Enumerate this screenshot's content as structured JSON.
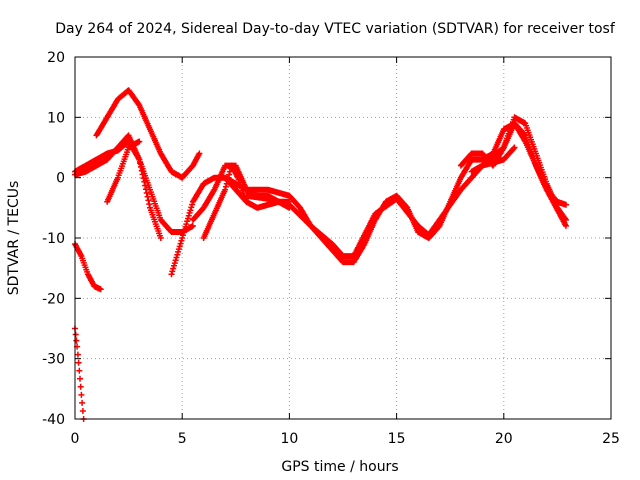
{
  "chart_data": {
    "type": "scatter",
    "title": "Day 264 of 2024, Sidereal Day-to-day VTEC variation (SDTVAR) for receiver tosf",
    "xlabel": "GPS time / hours",
    "ylabel": "SDTVAR / TECUs",
    "xlim": [
      0,
      25
    ],
    "ylim": [
      -40,
      20
    ],
    "xticks": [
      0,
      5,
      10,
      15,
      20,
      25
    ],
    "yticks": [
      -40,
      -30,
      -20,
      -10,
      0,
      10,
      20
    ],
    "grid": true,
    "marker": "+",
    "color": "#ff0000",
    "series": [
      {
        "name": "s1",
        "x": [
          0.0,
          0.1,
          0.2,
          0.3,
          0.4
        ],
        "y": [
          -25,
          -28,
          -32,
          -36,
          -40
        ]
      },
      {
        "name": "s2",
        "x": [
          0.0,
          0.3,
          0.6,
          0.9,
          1.2
        ],
        "y": [
          -11,
          -13,
          -16,
          -18,
          -18.5
        ]
      },
      {
        "name": "s3",
        "x": [
          0.0,
          0.5,
          1.0,
          1.5,
          2.0,
          2.5,
          3.0,
          3.5,
          4.0
        ],
        "y": [
          0.5,
          1,
          2,
          3,
          5,
          7,
          3,
          -5,
          -10
        ]
      },
      {
        "name": "s4",
        "x": [
          1.0,
          1.5,
          2.0,
          2.5,
          3.0,
          3.5,
          4.0,
          4.5,
          5.0,
          5.5,
          5.8
        ],
        "y": [
          7,
          10,
          13,
          14.5,
          12,
          8,
          4,
          1,
          0,
          2,
          4
        ]
      },
      {
        "name": "s5",
        "x": [
          0.0,
          0.5,
          1.0,
          1.5,
          2.0,
          2.5,
          3.0,
          3.5,
          4.0,
          4.5,
          5.0,
          5.5
        ],
        "y": [
          1,
          2,
          3,
          4,
          4.5,
          6,
          3,
          -2,
          -7,
          -9,
          -9,
          -8
        ]
      },
      {
        "name": "s6",
        "x": [
          1.5,
          2.0,
          2.5,
          3.0
        ],
        "y": [
          -4,
          0,
          5,
          6
        ]
      },
      {
        "name": "s7",
        "x": [
          4.5,
          5.0,
          5.5,
          6.0,
          6.5,
          7.0,
          7.5,
          8.0
        ],
        "y": [
          -16,
          -10,
          -4,
          -1,
          0,
          0,
          -2,
          -4
        ]
      },
      {
        "name": "s8",
        "x": [
          5.5,
          6.0,
          6.5,
          7.0,
          7.5,
          8.0,
          8.5,
          9.0,
          9.5,
          10.0
        ],
        "y": [
          -7,
          -5,
          -2,
          2,
          2,
          -2,
          -3,
          -3,
          -4,
          -5
        ]
      },
      {
        "name": "s9",
        "x": [
          6.0,
          6.5,
          7.0,
          7.3,
          7.6,
          8.0,
          8.5,
          9.0,
          9.5,
          10.0
        ],
        "y": [
          -10,
          -6,
          -2,
          2,
          0,
          -4,
          -5,
          -4.5,
          -4,
          -4
        ]
      },
      {
        "name": "s10",
        "x": [
          7.0,
          7.5,
          8.0,
          8.5,
          9.0,
          9.5,
          10.0,
          10.5,
          11.0,
          11.5,
          12.0,
          12.5,
          13.0,
          13.5,
          14.0,
          14.5,
          15.0,
          15.5,
          16.0,
          16.5,
          17.0,
          17.5,
          18.0,
          18.5,
          19.0,
          19.5,
          20.0,
          20.5,
          21.0,
          21.5,
          22.0,
          22.5,
          22.9
        ],
        "y": [
          0,
          -1,
          -2,
          -2,
          -2,
          -2.5,
          -3,
          -5,
          -8,
          -10,
          -12,
          -14,
          -14,
          -11,
          -7,
          -4,
          -3,
          -5,
          -9,
          -10,
          -8,
          -4,
          0,
          3,
          3,
          4,
          8,
          9,
          7,
          2,
          -2,
          -4,
          -4.5
        ]
      },
      {
        "name": "s11",
        "x": [
          8.0,
          9.0,
          10.0,
          11.0,
          12.0,
          12.5,
          13.0,
          14.0,
          15.0,
          16.0,
          16.5,
          17.0,
          18.0,
          19.0,
          20.0,
          20.5,
          21.0,
          22.0,
          22.9
        ],
        "y": [
          -3,
          -3.5,
          -4.5,
          -8,
          -11,
          -13,
          -13,
          -6,
          -3.5,
          -8,
          -9.5,
          -7,
          -2,
          2,
          5,
          9,
          6,
          -2,
          -8
        ]
      },
      {
        "name": "s12",
        "x": [
          18.0,
          18.5,
          19.0,
          19.5,
          20.0,
          20.5,
          21.0,
          21.5,
          22.0,
          22.5,
          22.9
        ],
        "y": [
          2,
          4,
          4,
          2,
          5,
          10,
          9,
          4,
          -1,
          -5,
          -7
        ]
      },
      {
        "name": "s13",
        "x": [
          18.5,
          19.0,
          19.5,
          20.0,
          20.5
        ],
        "y": [
          1,
          2,
          2.5,
          3,
          5
        ]
      }
    ]
  }
}
